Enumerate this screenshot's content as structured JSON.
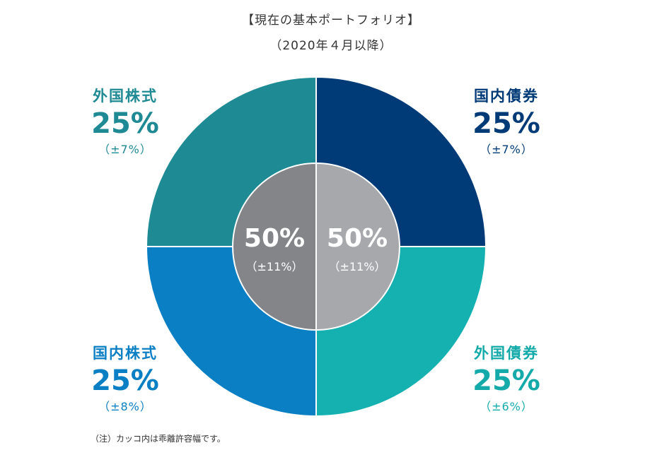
{
  "header": {
    "title": "【現在の基本ポートフォリオ】",
    "subtitle": "（2020年４月以降）"
  },
  "chart_data": {
    "type": "pie",
    "title": "【現在の基本ポートフォリオ】",
    "subtitle": "（2020年４月以降）",
    "outer_segments": [
      {
        "name": "国内債券",
        "value": 25,
        "value_label": "25%",
        "range_label": "（±7%）",
        "color": "#003b78"
      },
      {
        "name": "外国債券",
        "value": 25,
        "value_label": "25%",
        "range_label": "（±6%）",
        "color": "#15b1b1"
      },
      {
        "name": "国内株式",
        "value": 25,
        "value_label": "25%",
        "range_label": "（±8%）",
        "color": "#0a7fc4"
      },
      {
        "name": "外国株式",
        "value": 25,
        "value_label": "25%",
        "range_label": "（±7%）",
        "color": "#1e8a94"
      }
    ],
    "inner_segments": [
      {
        "value": 50,
        "value_label": "50%",
        "range_label": "（±11%）",
        "color": "#a7a8ab"
      },
      {
        "value": 50,
        "value_label": "50%",
        "range_label": "（±11%）",
        "color": "#838588"
      }
    ],
    "note": "（注）カッコ内は乖離許容幅です。"
  }
}
